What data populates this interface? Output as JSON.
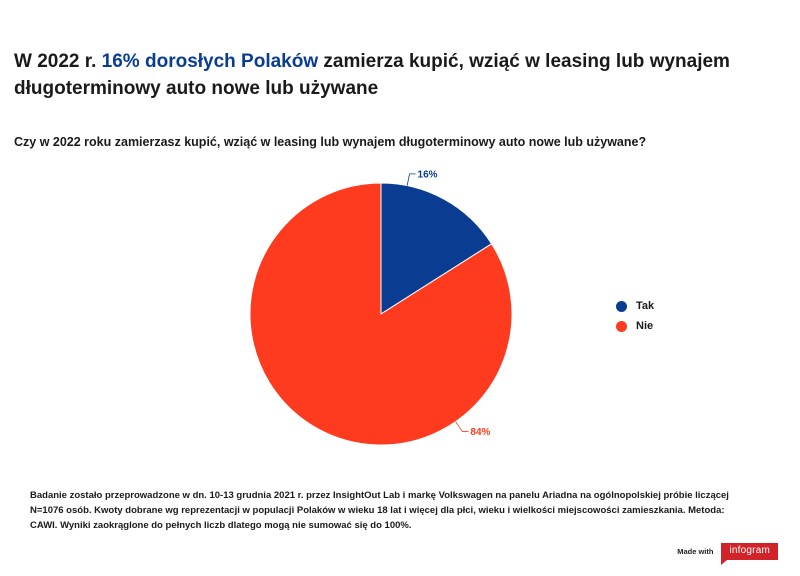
{
  "title": {
    "part1": "W 2022 r. ",
    "highlight": "16% dorosłych Polaków",
    "part2": " zamierza kupić, wziąć w leasing lub wynajem długoterminowy auto nowe lub używane"
  },
  "question": "Czy w 2022 roku zamierzasz kupić, wziąć w leasing lub wynajem długoterminowy auto nowe lub używane?",
  "colors": {
    "highlight": "#0a3d91",
    "tak": "#0a3d91",
    "nie": "#ff3b1f",
    "brand": "#d1232a"
  },
  "chart_data": {
    "type": "pie",
    "labels": [
      "Tak",
      "Nie"
    ],
    "values": [
      16,
      84
    ],
    "data_labels": [
      "16%",
      "84%"
    ],
    "colors": [
      "#0a3d91",
      "#ff3b1f"
    ],
    "legend_position": "right"
  },
  "footnote": "Badanie zostało przeprowadzone w dn. 10-13 grudnia 2021 r. przez InsightOut Lab i markę Volkswagen na panelu Ariadna na ogólnopolskiej próbie liczącej N=1076 osób. Kwoty dobrane wg reprezentacji w populacji Polaków w wieku 18 lat i więcej dla płci, wieku i wielkości miejscowości zamieszkania. Metoda: CAWI. Wyniki zaokrąglone do pełnych liczb dlatego mogą nie sumować się do 100%.",
  "brand": {
    "made_with": "Made with",
    "logo": "infogram"
  }
}
